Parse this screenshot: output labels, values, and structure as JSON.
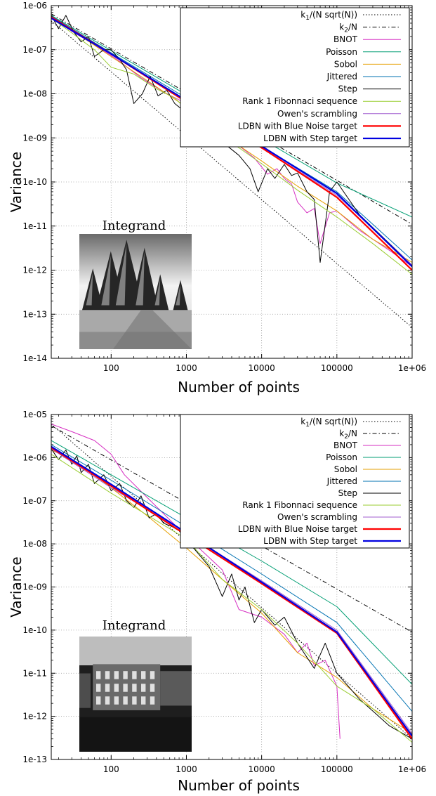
{
  "chart_data": [
    {
      "type": "line",
      "xlabel": "Number of points",
      "ylabel": "Variance",
      "xscale": "log",
      "yscale": "log",
      "xlim": [
        16,
        1000000
      ],
      "ylim": [
        1e-14,
        1e-06
      ],
      "x_tick_labels": [
        "100",
        "1000",
        "10000",
        "100000",
        "1e+06"
      ],
      "y_tick_labels": [
        "1e-14",
        "1e-13",
        "1e-12",
        "1e-11",
        "1e-10",
        "1e-09",
        "1e-08",
        "1e-07",
        "1e-06"
      ],
      "grid": true,
      "legend_position": "top-right",
      "inset": {
        "label": "Integrand",
        "image": "snowy forest road (grayscale)"
      },
      "series": [
        {
          "name": "k1/(N sqrt(N))",
          "color": "#000000",
          "dash": "dotted",
          "x": [
            16,
            1000000
          ],
          "y": [
            4.5e-07,
            5e-14
          ]
        },
        {
          "name": "k2/N",
          "color": "#000000",
          "dash": "dashdot",
          "x": [
            16,
            1000000
          ],
          "y": [
            6.5e-07,
            1.1e-11
          ]
        },
        {
          "name": "BNOT",
          "color": "#d62ec2",
          "dash": "solid",
          "x": [
            16,
            30,
            60,
            120,
            250,
            500,
            1000,
            2000,
            4000,
            8000,
            12000,
            16000,
            20000,
            25000,
            30000,
            40000,
            50000,
            60000,
            80000,
            100000,
            200000,
            500000,
            1000000
          ],
          "y": [
            5.6e-07,
            2.6e-07,
            1.3e-07,
            6e-08,
            2.3e-08,
            1.1e-08,
            6e-09,
            2.5e-09,
            9e-10,
            3.5e-10,
            1.5e-10,
            2e-10,
            1.2e-10,
            9e-11,
            3.5e-11,
            2e-11,
            2.5e-11,
            4e-12,
            2e-11,
            2.2e-11,
            8e-12,
            2.8e-12,
            1.2e-12
          ]
        },
        {
          "name": "Poisson",
          "color": "#009e73",
          "dash": "solid",
          "x": [
            16,
            100,
            1000,
            10000,
            100000,
            1000000
          ],
          "y": [
            6e-07,
            9.5e-08,
            9.5e-09,
            9.5e-10,
            9.5e-11,
            1.6e-11
          ]
        },
        {
          "name": "Sobol",
          "color": "#e69f00",
          "dash": "solid",
          "x": [
            16,
            40,
            100,
            300,
            1000,
            3000,
            10000,
            30000,
            100000,
            300000,
            1000000
          ],
          "y": [
            5.5e-07,
            2e-07,
            7e-08,
            2e-08,
            5e-09,
            1.2e-09,
            3e-10,
            8e-11,
            2.2e-11,
            5e-12,
            1.5e-12
          ]
        },
        {
          "name": "Jittered",
          "color": "#0072b2",
          "dash": "solid",
          "x": [
            16,
            100,
            1000,
            10000,
            100000,
            1000000
          ],
          "y": [
            5.8e-07,
            8.5e-08,
            8e-09,
            6.5e-10,
            6e-11,
            1.7e-12
          ]
        },
        {
          "name": "Step",
          "color": "#000000",
          "dash": "solid",
          "x": [
            16,
            20,
            25,
            32,
            40,
            50,
            60,
            80,
            100,
            130,
            160,
            200,
            260,
            330,
            420,
            550,
            700,
            5000,
            7000,
            9000,
            12000,
            15000,
            20000,
            25000,
            30000,
            40000,
            50000,
            60000,
            80000,
            100000,
            200000,
            500000,
            1000000
          ],
          "y": [
            6e-07,
            3e-07,
            6e-07,
            2.5e-07,
            1.5e-07,
            2e-07,
            7e-08,
            1e-07,
            1e-07,
            6e-08,
            3.5e-08,
            6e-09,
            1e-08,
            2.5e-08,
            9e-09,
            1.2e-08,
            6e-09,
            4e-10,
            2e-10,
            6e-11,
            2e-10,
            1.2e-10,
            2.5e-10,
            1.4e-10,
            1.6e-10,
            6e-11,
            4e-11,
            1.5e-12,
            6e-11,
            1e-10,
            1.8e-11,
            4e-12,
            1.3e-12
          ]
        },
        {
          "name": "Rank 1 Fibonnaci sequence",
          "color": "#9acd32",
          "dash": "solid",
          "x": [
            16,
            30,
            60,
            100,
            200,
            400,
            700,
            1000,
            3000,
            10000,
            30000,
            100000,
            300000,
            1000000
          ],
          "y": [
            5.2e-07,
            2.4e-07,
            1e-07,
            4e-08,
            2.8e-08,
            1.3e-08,
            8e-09,
            4.5e-09,
            1.1e-09,
            2.6e-10,
            6.5e-11,
            1.6e-11,
            4e-12,
            8e-13
          ]
        },
        {
          "name": "Owen's scrambling",
          "color": "#a05ccf",
          "dash": "solid",
          "x": [
            16,
            100,
            1000,
            10000,
            100000,
            1000000
          ],
          "y": [
            5.3e-07,
            8e-08,
            7e-09,
            6e-10,
            5e-11,
            1.3e-12
          ]
        },
        {
          "name": "LDBN with Blue Noise target",
          "color": "#ff0000",
          "dash": "solid",
          "x": [
            16,
            100,
            1000,
            10000,
            100000,
            1000000
          ],
          "y": [
            5.5e-07,
            8e-08,
            6.5e-09,
            6e-10,
            4.5e-11,
            1e-12
          ]
        },
        {
          "name": "LDBN with Step target",
          "color": "#0000e0",
          "dash": "solid",
          "x": [
            16,
            100,
            1000,
            10000,
            100000,
            1000000
          ],
          "y": [
            5.2e-07,
            8e-08,
            7e-09,
            6.5e-10,
            5.5e-11,
            1.2e-12
          ]
        }
      ]
    },
    {
      "type": "line",
      "xlabel": "Number of points",
      "ylabel": "Variance",
      "xscale": "log",
      "yscale": "log",
      "xlim": [
        16,
        1000000
      ],
      "ylim": [
        1e-13,
        1e-05
      ],
      "x_tick_labels": [
        "100",
        "1000",
        "10000",
        "100000",
        "1e+06"
      ],
      "y_tick_labels": [
        "1e-13",
        "1e-12",
        "1e-11",
        "1e-10",
        "1e-09",
        "1e-08",
        "1e-07",
        "1e-06",
        "1e-05"
      ],
      "grid": true,
      "legend_position": "top-right",
      "inset": {
        "label": "Integrand",
        "image": "street with buildings (grayscale)"
      },
      "series": [
        {
          "name": "k1/(N sqrt(N))",
          "color": "#000000",
          "dash": "dotted",
          "x": [
            16,
            1000000
          ],
          "y": [
            6e-06,
            3e-13
          ]
        },
        {
          "name": "k2/N",
          "color": "#000000",
          "dash": "dashdot",
          "x": [
            16,
            1000000
          ],
          "y": [
            5.5e-06,
            9e-11
          ]
        },
        {
          "name": "BNOT",
          "color": "#d62ec2",
          "dash": "solid",
          "x": [
            16,
            30,
            60,
            100,
            150,
            300,
            1000,
            3000,
            5000,
            10000,
            20000,
            30000,
            40000,
            50000,
            70000,
            100000,
            110000
          ],
          "y": [
            6e-06,
            4e-06,
            2.5e-06,
            1.2e-06,
            4e-07,
            1.2e-07,
            1.5e-08,
            2.5e-09,
            3e-10,
            2e-10,
            8e-11,
            3e-11,
            5e-11,
            1.5e-11,
            2e-11,
            5e-12,
            3e-13
          ]
        },
        {
          "name": "Poisson",
          "color": "#009e73",
          "dash": "solid",
          "x": [
            16,
            100,
            1000,
            10000,
            100000,
            1000000
          ],
          "y": [
            2.5e-06,
            4e-07,
            4e-08,
            4e-09,
            3.5e-10,
            5.5e-12
          ]
        },
        {
          "name": "Sobol",
          "color": "#e69f00",
          "dash": "solid",
          "x": [
            16,
            30,
            60,
            100,
            300,
            1000,
            3000,
            10000,
            30000,
            100000,
            300000,
            1000000
          ],
          "y": [
            1.5e-06,
            9e-07,
            4e-07,
            2e-07,
            4.5e-08,
            8e-09,
            1.5e-09,
            2.5e-10,
            3e-11,
            8e-12,
            1.5e-12,
            4e-13
          ]
        },
        {
          "name": "Jittered",
          "color": "#0072b2",
          "dash": "solid",
          "x": [
            16,
            100,
            1000,
            10000,
            100000,
            1000000
          ],
          "y": [
            2e-06,
            3e-07,
            2.5e-08,
            2e-09,
            1.5e-10,
            1.3e-12
          ]
        },
        {
          "name": "Step",
          "color": "#000000",
          "dash": "solid",
          "x": [
            16,
            20,
            25,
            30,
            35,
            40,
            50,
            60,
            80,
            100,
            130,
            160,
            200,
            250,
            320,
            400,
            500,
            650,
            800,
            2000,
            3000,
            4000,
            5000,
            6000,
            8000,
            10000,
            15000,
            20000,
            30000,
            50000,
            70000,
            100000,
            200000,
            500000,
            1000000
          ],
          "y": [
            1.6e-06,
            9e-07,
            1.5e-06,
            7e-07,
            1.1e-06,
            4.5e-07,
            7e-07,
            2.5e-07,
            4e-07,
            1.7e-07,
            2.5e-07,
            1e-07,
            7e-08,
            1.3e-07,
            4e-08,
            5e-08,
            3e-08,
            2.5e-08,
            2e-08,
            3e-09,
            6e-10,
            2e-09,
            5e-10,
            1e-09,
            1.5e-10,
            3e-10,
            1.3e-10,
            2e-10,
            5e-11,
            1.3e-11,
            5e-11,
            1e-11,
            2.5e-12,
            6e-13,
            3e-13
          ]
        },
        {
          "name": "Rank 1 Fibonnaci sequence",
          "color": "#9acd32",
          "dash": "solid",
          "x": [
            16,
            100,
            1000,
            3000,
            10000,
            30000,
            100000,
            300000,
            1000000
          ],
          "y": [
            1.2e-06,
            1.5e-07,
            1.3e-08,
            1.5e-09,
            3e-10,
            5e-11,
            5e-12,
            1.5e-12,
            2.5e-13
          ]
        },
        {
          "name": "Owen's scrambling",
          "color": "#a05ccf",
          "dash": "solid",
          "x": [
            16,
            100,
            1000,
            10000,
            100000,
            1000000
          ],
          "y": [
            1.6e-06,
            2e-07,
            1.8e-08,
            1.4e-09,
            1e-10,
            4e-13
          ]
        },
        {
          "name": "LDBN with Blue Noise target",
          "color": "#ff0000",
          "dash": "solid",
          "x": [
            16,
            100,
            1000,
            10000,
            100000,
            1000000
          ],
          "y": [
            1.7e-06,
            2.2e-07,
            1.6e-08,
            1.2e-09,
            8.5e-11,
            3e-13
          ]
        },
        {
          "name": "LDBN with Step target",
          "color": "#0000e0",
          "dash": "solid",
          "x": [
            16,
            100,
            1000,
            10000,
            100000,
            1000000
          ],
          "y": [
            1.8e-06,
            2.4e-07,
            1.8e-08,
            1.3e-09,
            9e-11,
            3.5e-13
          ]
        }
      ]
    }
  ]
}
